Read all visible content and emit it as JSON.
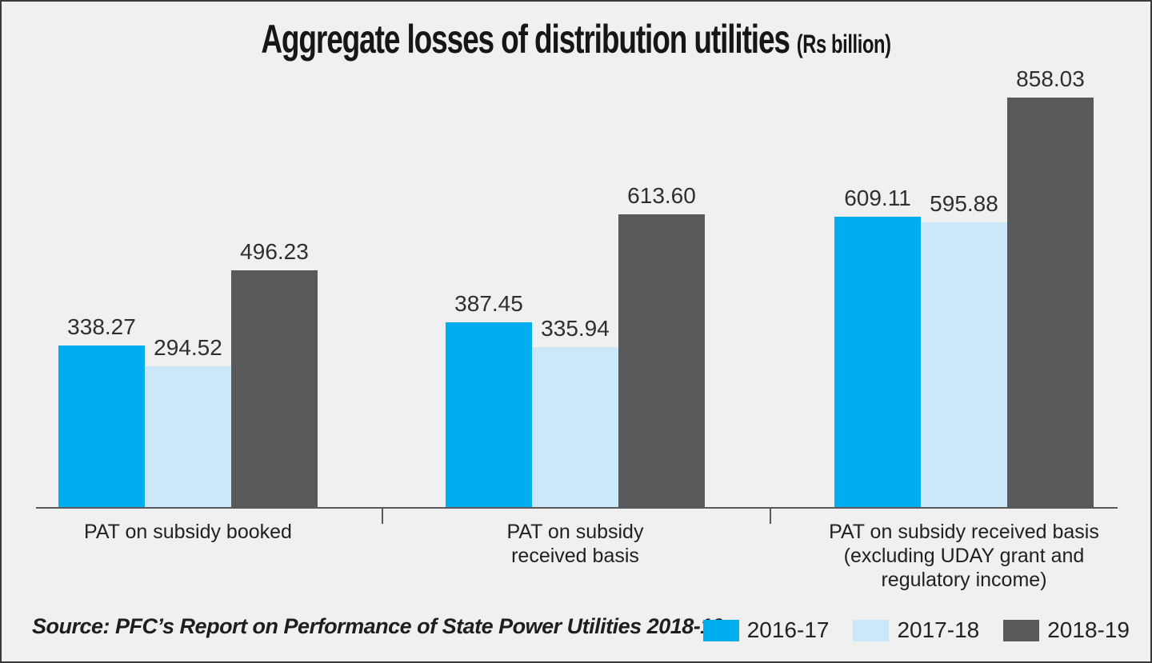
{
  "title": {
    "main": "Aggregate losses of distribution utilities",
    "unit": "(Rs billion)"
  },
  "source": "Source: PFC’s Report on Performance of State Power Utilities 2018-19",
  "colors": {
    "series_2016_17": "#00ADEF",
    "series_2017_18": "#CBE7F8",
    "series_2018_19": "#58595B",
    "background": "#F0F0F1",
    "axis": "#59595B",
    "frame_border": "#3B3B3C"
  },
  "chart_data": {
    "type": "bar",
    "title": "Aggregate losses of distribution utilities (Rs billion)",
    "xlabel": "",
    "ylabel": "",
    "ylim": [
      0,
      858.03
    ],
    "grid": false,
    "value_labels": true,
    "legend_position": "bottom-right",
    "categories": [
      "PAT on subsidy booked",
      "PAT on subsidy received basis",
      "PAT on subsidy received basis (excluding UDAY grant and regulatory income)"
    ],
    "category_lines": [
      [
        "PAT on subsidy booked"
      ],
      [
        "PAT on subsidy",
        "received basis"
      ],
      [
        "PAT on subsidy received basis",
        "(excluding UDAY grant and",
        "regulatory income)"
      ]
    ],
    "series": [
      {
        "name": "2016-17",
        "color": "#00ADEF",
        "values": [
          338.27,
          387.45,
          609.11
        ],
        "labels": [
          "338.27",
          "387.45",
          "609.11"
        ]
      },
      {
        "name": "2017-18",
        "color": "#CBE7F8",
        "values": [
          294.52,
          335.94,
          595.88
        ],
        "labels": [
          "294.52",
          "335.94",
          "595.88"
        ]
      },
      {
        "name": "2018-19",
        "color": "#58595B",
        "values": [
          496.23,
          613.6,
          858.03
        ],
        "labels": [
          "496.23",
          "613.60",
          "858.03"
        ]
      }
    ]
  }
}
